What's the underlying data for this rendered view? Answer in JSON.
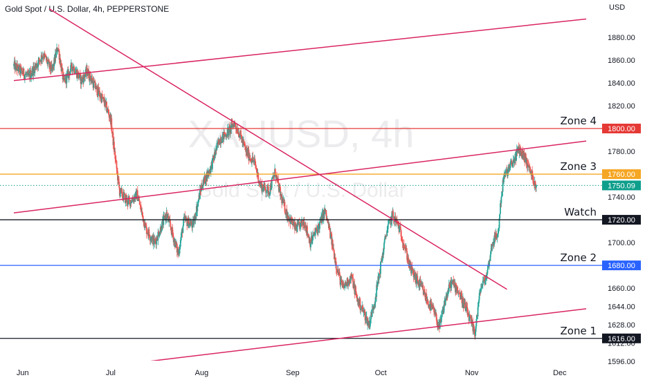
{
  "header": {
    "title": "Gold Spot / U.S. Dollar, 4h, PEPPERSTONE"
  },
  "watermark": {
    "symbol": "XAUUSD, 4h",
    "subtitle": "Gold Spot / U.S. Dollar"
  },
  "colors": {
    "up": "#26a69a",
    "down": "#ef5350",
    "trend": "#d9245f",
    "zone4": "#e53935",
    "zone3": "#f5a623",
    "watch": "#131722",
    "zone2": "#2962ff",
    "zone1": "#131722",
    "last": "#0e9f8c"
  },
  "chart_data": {
    "type": "candlestick",
    "symbol": "XAUUSD",
    "timeframe": "4h",
    "ylabel": "USD",
    "ylim": [
      1588,
      1906
    ],
    "y_ticks": [
      1596,
      1612,
      1628,
      1644,
      1660,
      1680,
      1700,
      1720,
      1740,
      1760,
      1780,
      1800,
      1820,
      1840,
      1860,
      1880
    ],
    "y_tick_labels": [
      "1596.00",
      "1612.00",
      "1628.00",
      "1644.00",
      "1660.00",
      "1680.00",
      "1700.00",
      "1720.00",
      "1740.00",
      "1760.00",
      "1780.00",
      "1800.00",
      "1820.00",
      "1840.00",
      "1860.00",
      "1880.00"
    ],
    "x_ticks": [
      {
        "t": 0,
        "label": "Jun"
      },
      {
        "t": 30,
        "label": "Jul"
      },
      {
        "t": 61,
        "label": "Aug"
      },
      {
        "t": 92,
        "label": "Sep"
      },
      {
        "t": 122,
        "label": "Oct"
      },
      {
        "t": 153,
        "label": "Nov"
      },
      {
        "t": 183,
        "label": "Dec"
      }
    ],
    "x_range": [
      -3,
      196
    ],
    "last_price": 1750.09,
    "last_price_label": "1750.09",
    "price_path": [
      [
        -3,
        1855
      ],
      [
        2,
        1845
      ],
      [
        7,
        1865
      ],
      [
        10,
        1850
      ],
      [
        12,
        1872
      ],
      [
        14,
        1840
      ],
      [
        17,
        1855
      ],
      [
        20,
        1842
      ],
      [
        22,
        1850
      ],
      [
        25,
        1835
      ],
      [
        28,
        1822
      ],
      [
        30,
        1808
      ],
      [
        31,
        1785
      ],
      [
        33,
        1745
      ],
      [
        36,
        1735
      ],
      [
        39,
        1742
      ],
      [
        42,
        1712
      ],
      [
        45,
        1700
      ],
      [
        49,
        1725
      ],
      [
        51,
        1708
      ],
      [
        53,
        1690
      ],
      [
        55,
        1720
      ],
      [
        58,
        1715
      ],
      [
        61,
        1750
      ],
      [
        64,
        1765
      ],
      [
        67,
        1790
      ],
      [
        70,
        1797
      ],
      [
        72,
        1805
      ],
      [
        74,
        1795
      ],
      [
        76,
        1780
      ],
      [
        79,
        1770
      ],
      [
        81,
        1750
      ],
      [
        84,
        1745
      ],
      [
        86,
        1762
      ],
      [
        88,
        1740
      ],
      [
        90,
        1725
      ],
      [
        93,
        1712
      ],
      [
        96,
        1718
      ],
      [
        98,
        1700
      ],
      [
        101,
        1715
      ],
      [
        103,
        1728
      ],
      [
        105,
        1705
      ],
      [
        107,
        1678
      ],
      [
        109,
        1660
      ],
      [
        112,
        1670
      ],
      [
        114,
        1650
      ],
      [
        116,
        1640
      ],
      [
        118,
        1628
      ],
      [
        120,
        1650
      ],
      [
        122,
        1680
      ],
      [
        124,
        1710
      ],
      [
        126,
        1724
      ],
      [
        128,
        1715
      ],
      [
        130,
        1698
      ],
      [
        132,
        1678
      ],
      [
        134,
        1668
      ],
      [
        136,
        1660
      ],
      [
        138,
        1648
      ],
      [
        140,
        1640
      ],
      [
        142,
        1625
      ],
      [
        144,
        1650
      ],
      [
        146,
        1665
      ],
      [
        148,
        1660
      ],
      [
        150,
        1648
      ],
      [
        152,
        1635
      ],
      [
        154,
        1620
      ],
      [
        156,
        1660
      ],
      [
        158,
        1670
      ],
      [
        160,
        1700
      ],
      [
        162,
        1708
      ],
      [
        163,
        1740
      ],
      [
        164,
        1758
      ],
      [
        165,
        1762
      ],
      [
        167,
        1770
      ],
      [
        169,
        1782
      ],
      [
        171,
        1775
      ],
      [
        173,
        1762
      ],
      [
        175,
        1750
      ]
    ],
    "horizontal_levels": [
      {
        "name": "Zone 4",
        "price": 1800,
        "label": "1800.00",
        "color_key": "zone4"
      },
      {
        "name": "Zone 3",
        "price": 1760,
        "label": "1760.00",
        "color_key": "zone3"
      },
      {
        "name": "Watch",
        "price": 1720,
        "label": "1720.00",
        "color_key": "watch"
      },
      {
        "name": "Zone 2",
        "price": 1680,
        "label": "1680.00",
        "color_key": "zone2"
      },
      {
        "name": "Zone 1",
        "price": 1616,
        "label": "1616.00",
        "color_key": "zone1"
      }
    ],
    "trendlines": [
      {
        "name": "upper-channel",
        "p1": [
          -3,
          1842
        ],
        "p2": [
          192,
          1896
        ]
      },
      {
        "name": "middle-channel",
        "p1": [
          -3,
          1726
        ],
        "p2": [
          192,
          1789
        ]
      },
      {
        "name": "lower-channel",
        "p1": [
          24,
          1590
        ],
        "p2": [
          192,
          1642
        ]
      },
      {
        "name": "descending",
        "p1": [
          9,
          1905
        ],
        "p2": [
          165,
          1659
        ]
      }
    ]
  }
}
